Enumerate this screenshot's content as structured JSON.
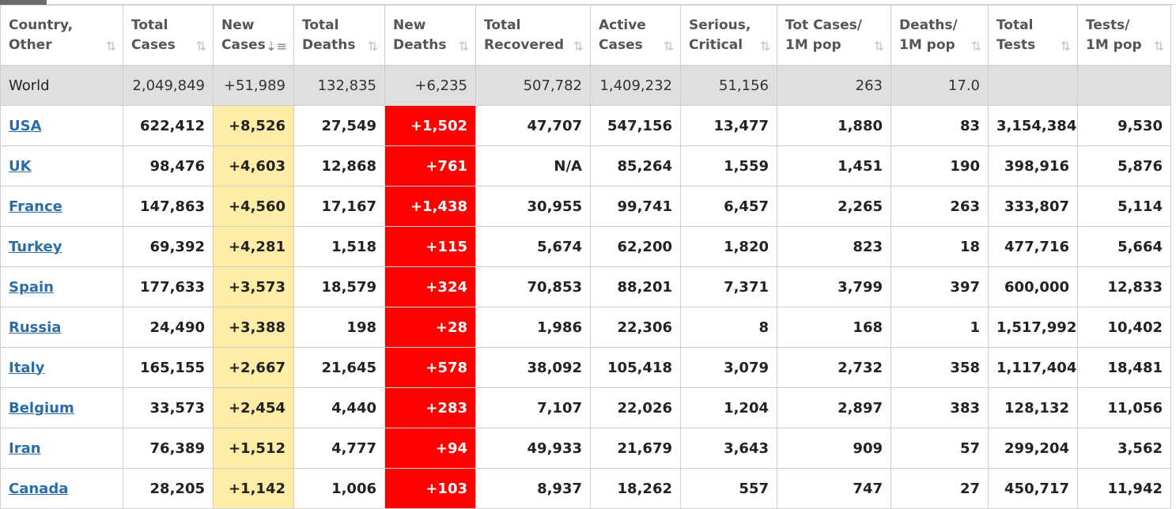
{
  "colors": {
    "new_cases_bg": "#fdeda6",
    "new_deaths_bg": "#ff0000",
    "world_row_bg": "#dfdfdf",
    "link": "#2b6da8"
  },
  "headers": [
    {
      "line1": "Country,",
      "line2": "Other",
      "sort_icon": "sort-arrows-icon"
    },
    {
      "line1": "Total",
      "line2": "Cases",
      "sort_icon": "sort-arrows-icon"
    },
    {
      "line1": "New",
      "line2": "Cases",
      "sort_icon": "sort-descending-icon"
    },
    {
      "line1": "Total",
      "line2": "Deaths",
      "sort_icon": "sort-arrows-icon"
    },
    {
      "line1": "New",
      "line2": "Deaths",
      "sort_icon": "sort-arrows-icon"
    },
    {
      "line1": "Total",
      "line2": "Recovered",
      "sort_icon": "sort-arrows-icon"
    },
    {
      "line1": "Active",
      "line2": "Cases",
      "sort_icon": "sort-arrows-icon"
    },
    {
      "line1": "Serious,",
      "line2": "Critical",
      "sort_icon": "sort-arrows-icon"
    },
    {
      "line1": "Tot Cases/",
      "line2": "1M pop",
      "sort_icon": "sort-arrows-icon"
    },
    {
      "line1": "Deaths/",
      "line2": "1M pop",
      "sort_icon": "sort-arrows-icon"
    },
    {
      "line1": "Total",
      "line2": "Tests",
      "sort_icon": "sort-arrows-icon"
    },
    {
      "line1": "Tests/",
      "line2": "1M pop",
      "sort_icon": "sort-arrows-icon"
    }
  ],
  "world": [
    "World",
    "2,049,849",
    "+51,989",
    "132,835",
    "+6,235",
    "507,782",
    "1,409,232",
    "51,156",
    "263",
    "17.0",
    "",
    ""
  ],
  "rows": [
    [
      "USA",
      "622,412",
      "+8,526",
      "27,549",
      "+1,502",
      "47,707",
      "547,156",
      "13,477",
      "1,880",
      "83",
      "3,154,384",
      "9,530"
    ],
    [
      "UK",
      "98,476",
      "+4,603",
      "12,868",
      "+761",
      "N/A",
      "85,264",
      "1,559",
      "1,451",
      "190",
      "398,916",
      "5,876"
    ],
    [
      "France",
      "147,863",
      "+4,560",
      "17,167",
      "+1,438",
      "30,955",
      "99,741",
      "6,457",
      "2,265",
      "263",
      "333,807",
      "5,114"
    ],
    [
      "Turkey",
      "69,392",
      "+4,281",
      "1,518",
      "+115",
      "5,674",
      "62,200",
      "1,820",
      "823",
      "18",
      "477,716",
      "5,664"
    ],
    [
      "Spain",
      "177,633",
      "+3,573",
      "18,579",
      "+324",
      "70,853",
      "88,201",
      "7,371",
      "3,799",
      "397",
      "600,000",
      "12,833"
    ],
    [
      "Russia",
      "24,490",
      "+3,388",
      "198",
      "+28",
      "1,986",
      "22,306",
      "8",
      "168",
      "1",
      "1,517,992",
      "10,402"
    ],
    [
      "Italy",
      "165,155",
      "+2,667",
      "21,645",
      "+578",
      "38,092",
      "105,418",
      "3,079",
      "2,732",
      "358",
      "1,117,404",
      "18,481"
    ],
    [
      "Belgium",
      "33,573",
      "+2,454",
      "4,440",
      "+283",
      "7,107",
      "22,026",
      "1,204",
      "2,897",
      "383",
      "128,132",
      "11,056"
    ],
    [
      "Iran",
      "76,389",
      "+1,512",
      "4,777",
      "+94",
      "49,933",
      "21,679",
      "3,643",
      "909",
      "57",
      "299,204",
      "3,562"
    ],
    [
      "Canada",
      "28,205",
      "+1,142",
      "1,006",
      "+103",
      "8,937",
      "18,262",
      "557",
      "747",
      "27",
      "450,717",
      "11,942"
    ]
  ]
}
